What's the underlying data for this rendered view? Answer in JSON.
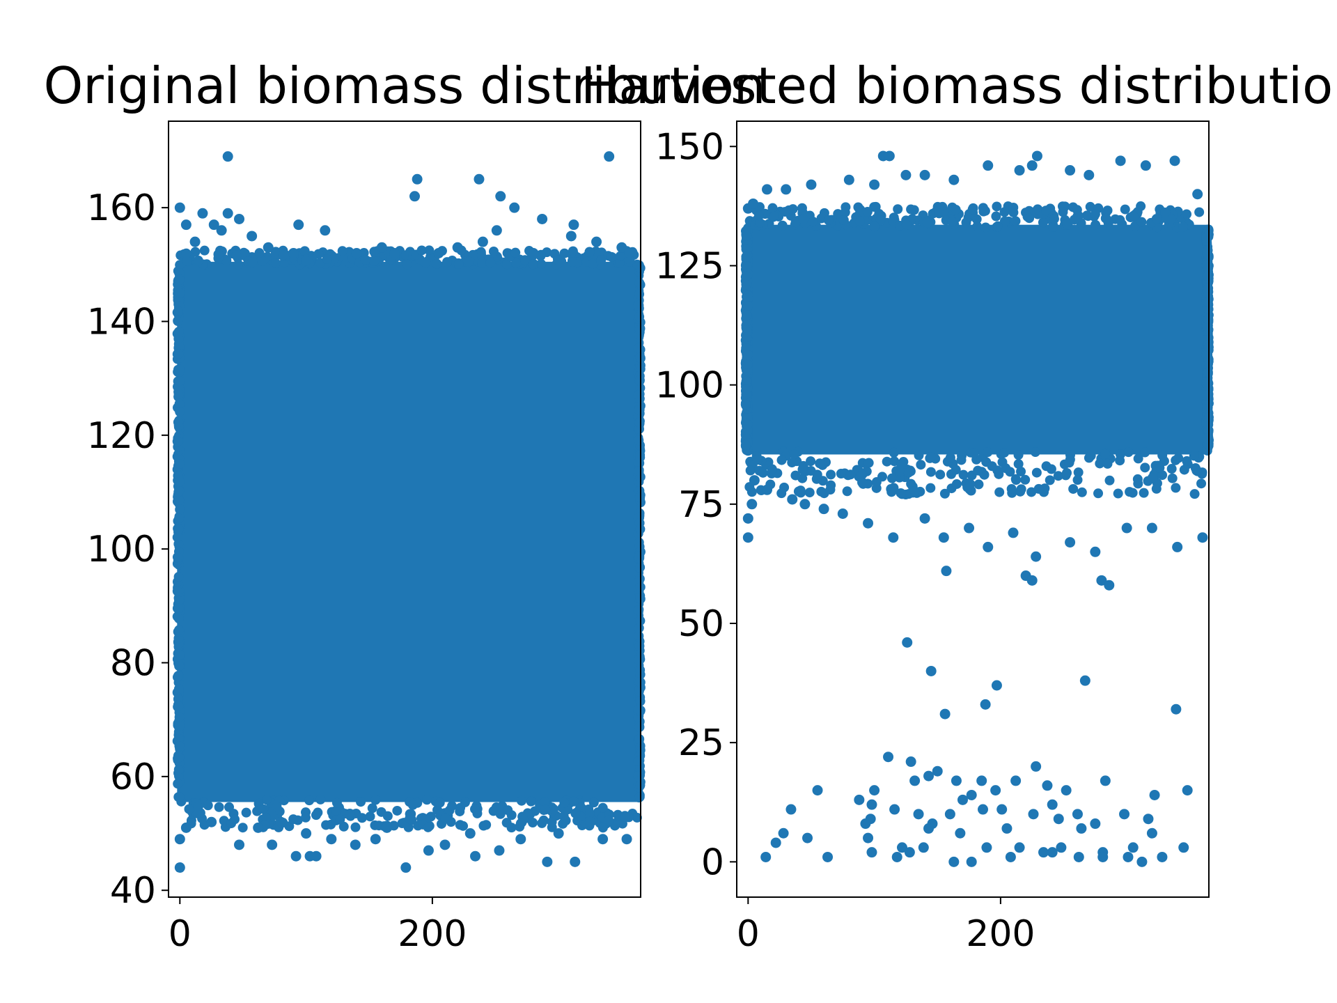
{
  "chart_data": [
    {
      "type": "scatter",
      "title": "Original biomass distribution",
      "xlabel": "",
      "ylabel": "",
      "xlim": [
        -9,
        365
      ],
      "ylim": [
        38.8,
        175.2
      ],
      "xticks": [
        0,
        200
      ],
      "xtick_labels": [
        "0",
        "200"
      ],
      "yticks": [
        40,
        60,
        80,
        100,
        120,
        140,
        160
      ],
      "ytick_labels": [
        "40",
        "60",
        "80",
        "100",
        "120",
        "140",
        "160"
      ],
      "color": "#1f77b4",
      "bulk_region": {
        "x": [
          0,
          363
        ],
        "y": [
          56,
          150
        ]
      },
      "series": [
        {
          "name": "",
          "points": [
            [
              38,
              169
            ],
            [
              340,
              169
            ],
            [
              0,
              160
            ],
            [
              188,
              165
            ],
            [
              237,
              165
            ],
            [
              186,
              162
            ],
            [
              254,
              162
            ],
            [
              18,
              159
            ],
            [
              38,
              159
            ],
            [
              265,
              160
            ],
            [
              27,
              157
            ],
            [
              47,
              158
            ],
            [
              5,
              157
            ],
            [
              94,
              157
            ],
            [
              115,
              156
            ],
            [
              287,
              158
            ],
            [
              312,
              157
            ],
            [
              33,
              156
            ],
            [
              57,
              155
            ],
            [
              251,
              156
            ],
            [
              310,
              155
            ],
            [
              0,
              44
            ],
            [
              179,
              44
            ],
            [
              234,
              46
            ],
            [
              291,
              45
            ],
            [
              313,
              45
            ],
            [
              92,
              46
            ],
            [
              108,
              46
            ],
            [
              103,
              46
            ],
            [
              253,
              47
            ],
            [
              47,
              48
            ],
            [
              73,
              48
            ],
            [
              139,
              48
            ],
            [
              197,
              47
            ],
            [
              0,
              49
            ],
            [
              155,
              49
            ],
            [
              335,
              49
            ],
            [
              354,
              49
            ],
            [
              5,
              51
            ],
            [
              62,
              51
            ],
            [
              120,
              49
            ],
            [
              270,
              49
            ],
            [
              25,
              52
            ],
            [
              100,
              50
            ],
            [
              210,
              48
            ],
            [
              325,
              52
            ],
            [
              164,
              51
            ],
            [
              230,
              50
            ],
            [
              300,
              50
            ],
            [
              80,
              52
            ],
            [
              12,
              154
            ],
            [
              140,
              152
            ],
            [
              170,
              152
            ],
            [
              205,
              152
            ],
            [
              240,
              154
            ],
            [
              330,
              154
            ],
            [
              350,
              153
            ],
            [
              70,
              153
            ],
            [
              90,
              152
            ],
            [
              160,
              153
            ],
            [
              220,
              153
            ],
            [
              280,
              152
            ]
          ]
        }
      ]
    },
    {
      "type": "scatter",
      "title": "Harvested biomass distribution",
      "xlabel": "",
      "ylabel": "",
      "xlim": [
        -9,
        365
      ],
      "ylim": [
        -7.4,
        155.3
      ],
      "xticks": [
        0,
        200
      ],
      "xtick_labels": [
        "0",
        "200"
      ],
      "yticks": [
        0,
        25,
        50,
        75,
        100,
        125,
        150
      ],
      "ytick_labels": [
        "0",
        "25",
        "50",
        "75",
        "100",
        "125",
        "150"
      ],
      "color": "#1f77b4",
      "bulk_region": {
        "x": [
          0,
          363
        ],
        "y": [
          86,
          133
        ]
      },
      "series": [
        {
          "name": "",
          "points": [
            [
              107,
              148
            ],
            [
              112,
              148
            ],
            [
              229,
              148
            ],
            [
              0,
              137
            ],
            [
              4,
              138
            ],
            [
              15,
              141
            ],
            [
              30,
              141
            ],
            [
              50,
              142
            ],
            [
              80,
              143
            ],
            [
              100,
              142
            ],
            [
              125,
              144
            ],
            [
              140,
              144
            ],
            [
              163,
              143
            ],
            [
              190,
              146
            ],
            [
              215,
              145
            ],
            [
              225,
              146
            ],
            [
              255,
              145
            ],
            [
              270,
              144
            ],
            [
              295,
              147
            ],
            [
              315,
              146
            ],
            [
              338,
              147
            ],
            [
              356,
              140
            ],
            [
              0,
              72
            ],
            [
              0,
              68
            ],
            [
              3,
              75
            ],
            [
              15,
              78
            ],
            [
              5,
              80
            ],
            [
              35,
              76
            ],
            [
              45,
              75
            ],
            [
              60,
              74
            ],
            [
              75,
              73
            ],
            [
              95,
              71
            ],
            [
              115,
              68
            ],
            [
              140,
              72
            ],
            [
              155,
              68
            ],
            [
              175,
              70
            ],
            [
              190,
              66
            ],
            [
              210,
              69
            ],
            [
              228,
              64
            ],
            [
              255,
              67
            ],
            [
              275,
              65
            ],
            [
              300,
              70
            ],
            [
              320,
              70
            ],
            [
              340,
              66
            ],
            [
              360,
              68
            ],
            [
              157,
              61
            ],
            [
              220,
              60
            ],
            [
              225,
              59
            ],
            [
              280,
              59
            ],
            [
              286,
              58
            ],
            [
              126,
              46
            ],
            [
              145,
              40
            ],
            [
              197,
              37
            ],
            [
              267,
              38
            ],
            [
              156,
              31
            ],
            [
              188,
              33
            ],
            [
              339,
              32
            ],
            [
              111,
              22
            ],
            [
              129,
              21
            ],
            [
              228,
              20
            ],
            [
              150,
              19
            ],
            [
              143,
              18
            ],
            [
              165,
              17
            ],
            [
              185,
              17
            ],
            [
              283,
              17
            ],
            [
              212,
              17
            ],
            [
              132,
              17
            ],
            [
              100,
              15
            ],
            [
              55,
              15
            ],
            [
              237,
              16
            ],
            [
              252,
              15
            ],
            [
              348,
              15
            ],
            [
              322,
              14
            ],
            [
              170,
              13
            ],
            [
              177,
              14
            ],
            [
              88,
              13
            ],
            [
              116,
              11
            ],
            [
              34,
              11
            ],
            [
              98,
              12
            ],
            [
              196,
              15
            ],
            [
              201,
              11
            ],
            [
              186,
              11
            ],
            [
              241,
              12
            ],
            [
              261,
              10
            ],
            [
              298,
              10
            ],
            [
              317,
              9
            ],
            [
              135,
              10
            ],
            [
              160,
              10
            ],
            [
              97,
              9
            ],
            [
              93,
              8
            ],
            [
              226,
              10
            ],
            [
              275,
              8
            ],
            [
              246,
              9
            ],
            [
              146,
              8
            ],
            [
              28,
              6
            ],
            [
              47,
              5
            ],
            [
              95,
              5
            ],
            [
              143,
              7
            ],
            [
              168,
              6
            ],
            [
              205,
              7
            ],
            [
              264,
              7
            ],
            [
              320,
              6
            ],
            [
              22,
              4
            ],
            [
              122,
              3
            ],
            [
              189,
              3
            ],
            [
              215,
              3
            ],
            [
              248,
              3
            ],
            [
              281,
              2
            ],
            [
              305,
              3
            ],
            [
              345,
              3
            ],
            [
              14,
              1
            ],
            [
              63,
              1
            ],
            [
              98,
              2
            ],
            [
              118,
              1
            ],
            [
              128,
              2
            ],
            [
              139,
              3
            ],
            [
              163,
              0
            ],
            [
              177,
              0
            ],
            [
              208,
              1
            ],
            [
              234,
              2
            ],
            [
              241,
              2
            ],
            [
              262,
              1
            ],
            [
              281,
              1
            ],
            [
              301,
              1
            ],
            [
              312,
              0
            ],
            [
              328,
              1
            ]
          ]
        }
      ]
    }
  ]
}
